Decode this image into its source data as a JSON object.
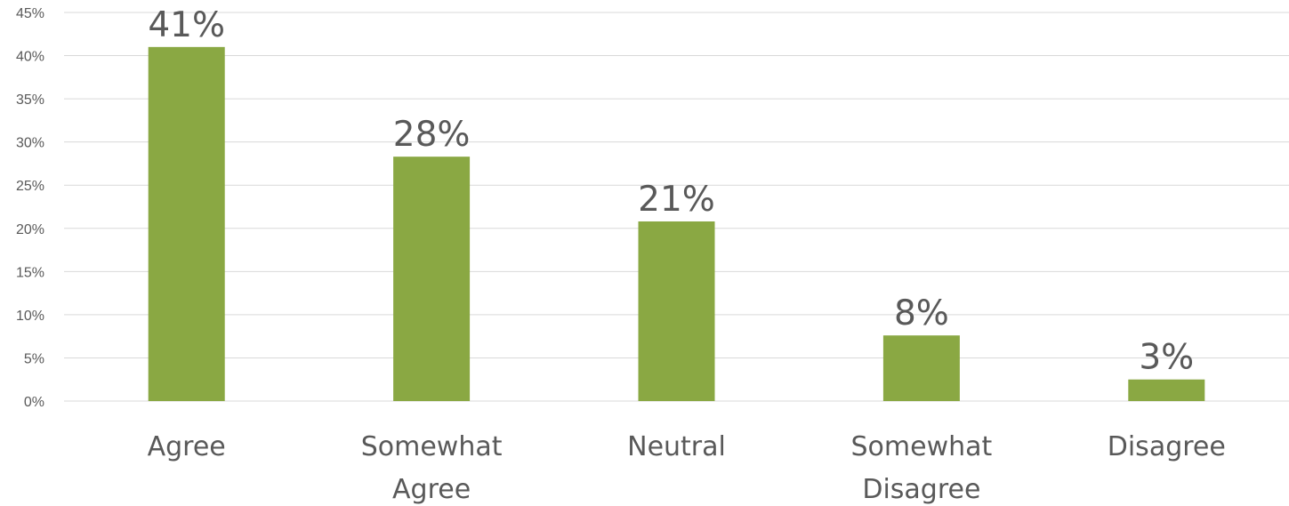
{
  "chart_data": {
    "type": "bar",
    "title": "",
    "xlabel": "",
    "ylabel": "",
    "categories": [
      [
        "Agree"
      ],
      [
        "Somewhat",
        "Agree"
      ],
      [
        "Neutral"
      ],
      [
        "Somewhat",
        "Disagree"
      ],
      [
        "Disagree"
      ]
    ],
    "values": [
      41,
      28.3,
      20.8,
      7.6,
      2.5
    ],
    "data_labels": [
      "41%",
      "28%",
      "21%",
      "8%",
      "3%"
    ],
    "y_ticks": [
      "0%",
      "5%",
      "10%",
      "15%",
      "20%",
      "25%",
      "30%",
      "35%",
      "40%",
      "45%"
    ],
    "ylim": [
      0,
      45
    ],
    "grid": true,
    "legend": false,
    "bar_color": "#8aa843",
    "text_color": "#595959",
    "grid_color": "#d9d9d9"
  }
}
